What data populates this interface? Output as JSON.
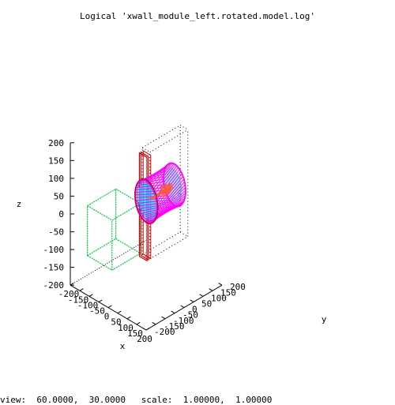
{
  "title": "Logical 'xwall_module_left.rotated.model.log'",
  "view_text": "view:  60.0000,  30.0000   scale:  1.00000,  1.00000",
  "chart_data": {
    "type": "scatter",
    "projection": "3d",
    "view": {
      "rot_x": 60.0,
      "rot_z": 30.0,
      "scale": 1.0,
      "scale_z": 1.0
    },
    "xlabel": "x",
    "ylabel": "y",
    "zlabel": "z",
    "xticks": [
      "-200",
      "-150",
      "-100",
      "-50",
      "0",
      "50",
      "100",
      "150",
      "200"
    ],
    "yticks": [
      "-200",
      "-150",
      "-100",
      "-50",
      "0",
      "50",
      "100",
      "150",
      "200"
    ],
    "zticks": [
      "-200",
      "-150",
      "-100",
      "-50",
      "0",
      "50",
      "100",
      "150",
      "200"
    ],
    "xlim": [
      -200,
      200
    ],
    "ylim": [
      -200,
      200
    ],
    "zlim": [
      -200,
      200
    ],
    "colors": {
      "frame": "#000000",
      "bounding_box": "#000000",
      "red_frame": "#cc0000",
      "green_box": "#00cc44",
      "magenta_cylinder": "#ff00ff",
      "cyan_fill": "#00d8ff",
      "inner_red": "#ff5a3c",
      "blue_detail": "#3355ff"
    }
  }
}
